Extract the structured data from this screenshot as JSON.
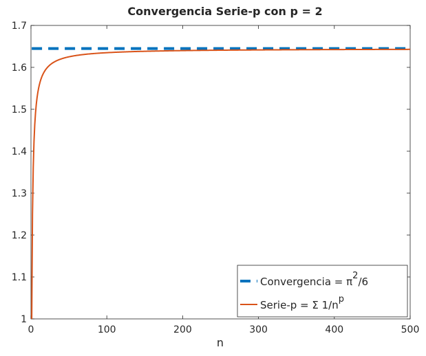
{
  "chart_data": {
    "type": "line",
    "title": "Convergencia Serie-p con p = 2",
    "xlabel": "n",
    "ylabel": "",
    "xlim": [
      0,
      500
    ],
    "ylim": [
      1,
      1.7
    ],
    "xticks": [
      0,
      100,
      200,
      300,
      400,
      500
    ],
    "yticks": [
      1,
      1.1,
      1.2,
      1.3,
      1.4,
      1.5,
      1.6,
      1.7
    ],
    "xtick_labels": [
      "0",
      "100",
      "200",
      "300",
      "400",
      "500"
    ],
    "ytick_labels": [
      "1",
      "1.1",
      "1.2",
      "1.3",
      "1.4",
      "1.5",
      "1.6",
      "1.7"
    ],
    "grid": false,
    "legend_position": "bottom-right",
    "p": 2,
    "series": [
      {
        "name": "Convergencia = π²/6",
        "legend_parts": [
          "Convergencia = π",
          "2",
          "/6"
        ],
        "style": "dashed",
        "color": "#0072BD",
        "x": [
          1,
          500
        ],
        "y": [
          1.6449,
          1.6449
        ]
      },
      {
        "name": "Serie-p = Σ 1/n^p",
        "legend_parts": [
          "Serie-p = Σ 1/n",
          "p",
          ""
        ],
        "style": "solid",
        "color": "#D95319",
        "x": [
          1,
          2,
          3,
          4,
          5,
          6,
          8,
          10,
          15,
          20,
          30,
          50,
          100,
          200,
          300,
          400,
          500
        ],
        "y": [
          1.0,
          1.25,
          1.3611,
          1.4236,
          1.4636,
          1.4914,
          1.5274,
          1.5498,
          1.5804,
          1.5962,
          1.6122,
          1.6251,
          1.635,
          1.6399,
          1.6416,
          1.6424,
          1.6429
        ]
      }
    ]
  }
}
